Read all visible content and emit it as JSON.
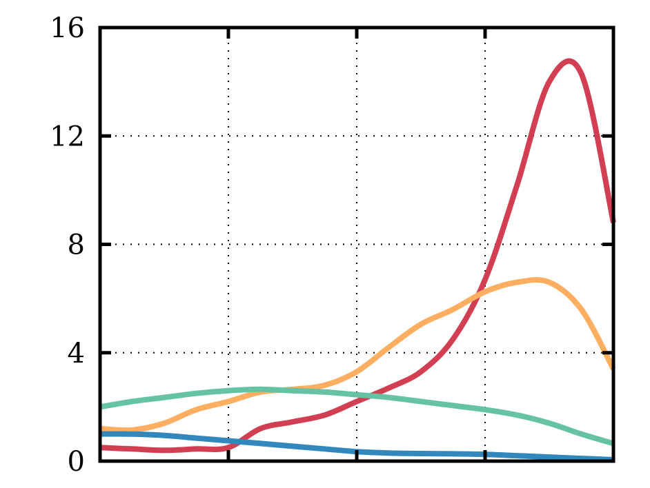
{
  "chart_data": {
    "type": "line",
    "title": "",
    "xlabel": "",
    "ylabel": "",
    "xlim": [
      0,
      4
    ],
    "ylim": [
      0,
      16
    ],
    "x_tick_values": [
      0,
      1,
      2,
      3,
      4
    ],
    "y_ticks": [
      {
        "value": 0,
        "label": "0"
      },
      {
        "value": 4,
        "label": "4"
      },
      {
        "value": 8,
        "label": "8"
      },
      {
        "value": 12,
        "label": "12"
      },
      {
        "value": 16,
        "label": "16"
      }
    ],
    "grid": true,
    "grid_style": "dotted",
    "x": [
      0,
      0.25,
      0.5,
      0.75,
      1.0,
      1.25,
      1.5,
      1.75,
      2.0,
      2.25,
      2.5,
      2.75,
      3.0,
      3.25,
      3.5,
      3.75,
      4.0
    ],
    "series": [
      {
        "color": "#d33f52",
        "values": [
          0.5,
          0.45,
          0.4,
          0.45,
          0.5,
          1.2,
          1.45,
          1.7,
          2.2,
          2.7,
          3.3,
          4.5,
          6.7,
          10.2,
          14.0,
          14.3,
          8.8
        ]
      },
      {
        "color": "#fdae61",
        "values": [
          1.2,
          1.15,
          1.4,
          1.9,
          2.2,
          2.55,
          2.65,
          2.8,
          3.3,
          4.2,
          5.05,
          5.6,
          6.25,
          6.6,
          6.6,
          5.6,
          3.4
        ]
      },
      {
        "color": "#66c2a5",
        "values": [
          2.0,
          2.2,
          2.35,
          2.5,
          2.6,
          2.65,
          2.6,
          2.55,
          2.45,
          2.35,
          2.2,
          2.05,
          1.9,
          1.7,
          1.4,
          1.0,
          0.65
        ]
      },
      {
        "color": "#3288bd",
        "values": [
          1.0,
          1.0,
          0.95,
          0.85,
          0.75,
          0.65,
          0.55,
          0.45,
          0.35,
          0.3,
          0.28,
          0.27,
          0.25,
          0.2,
          0.15,
          0.1,
          0.05
        ]
      }
    ]
  }
}
